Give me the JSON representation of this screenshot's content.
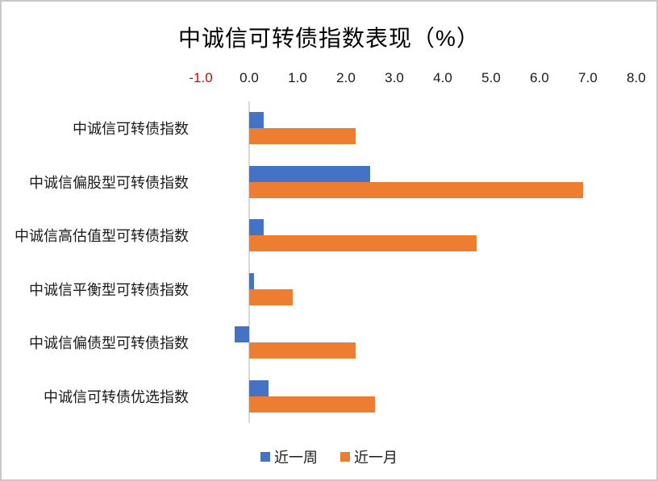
{
  "chart_data": {
    "type": "bar",
    "orientation": "horizontal",
    "title": "中诚信可转债指数表现（%）",
    "categories": [
      "中诚信可转债指数",
      "中诚信偏股型可转债指数",
      "中诚信高估值型可转债指数",
      "中诚信平衡型可转债指数",
      "中诚信偏债型可转债指数",
      "中诚信可转债优选指数"
    ],
    "series": [
      {
        "name": "近一周",
        "color": "#4472C4",
        "values": [
          0.3,
          2.5,
          0.3,
          0.1,
          -0.3,
          0.4
        ]
      },
      {
        "name": "近一月",
        "color": "#ED7D31",
        "values": [
          2.2,
          6.9,
          4.7,
          0.9,
          2.2,
          2.6
        ]
      }
    ],
    "x_axis": {
      "position": "top",
      "min": -1.0,
      "max": 8.0,
      "tick_step": 1.0,
      "ticks": [
        "-1.0",
        "0.0",
        "1.0",
        "2.0",
        "3.0",
        "4.0",
        "5.0",
        "6.0",
        "7.0",
        "8.0"
      ],
      "negative_tick_color": "#E00000",
      "tick_color": "#1a1a1a"
    },
    "axis_line_color": "#D9D9D9",
    "legend_position": "bottom",
    "grid": false,
    "ylim": [
      -1.0,
      8.0
    ]
  }
}
